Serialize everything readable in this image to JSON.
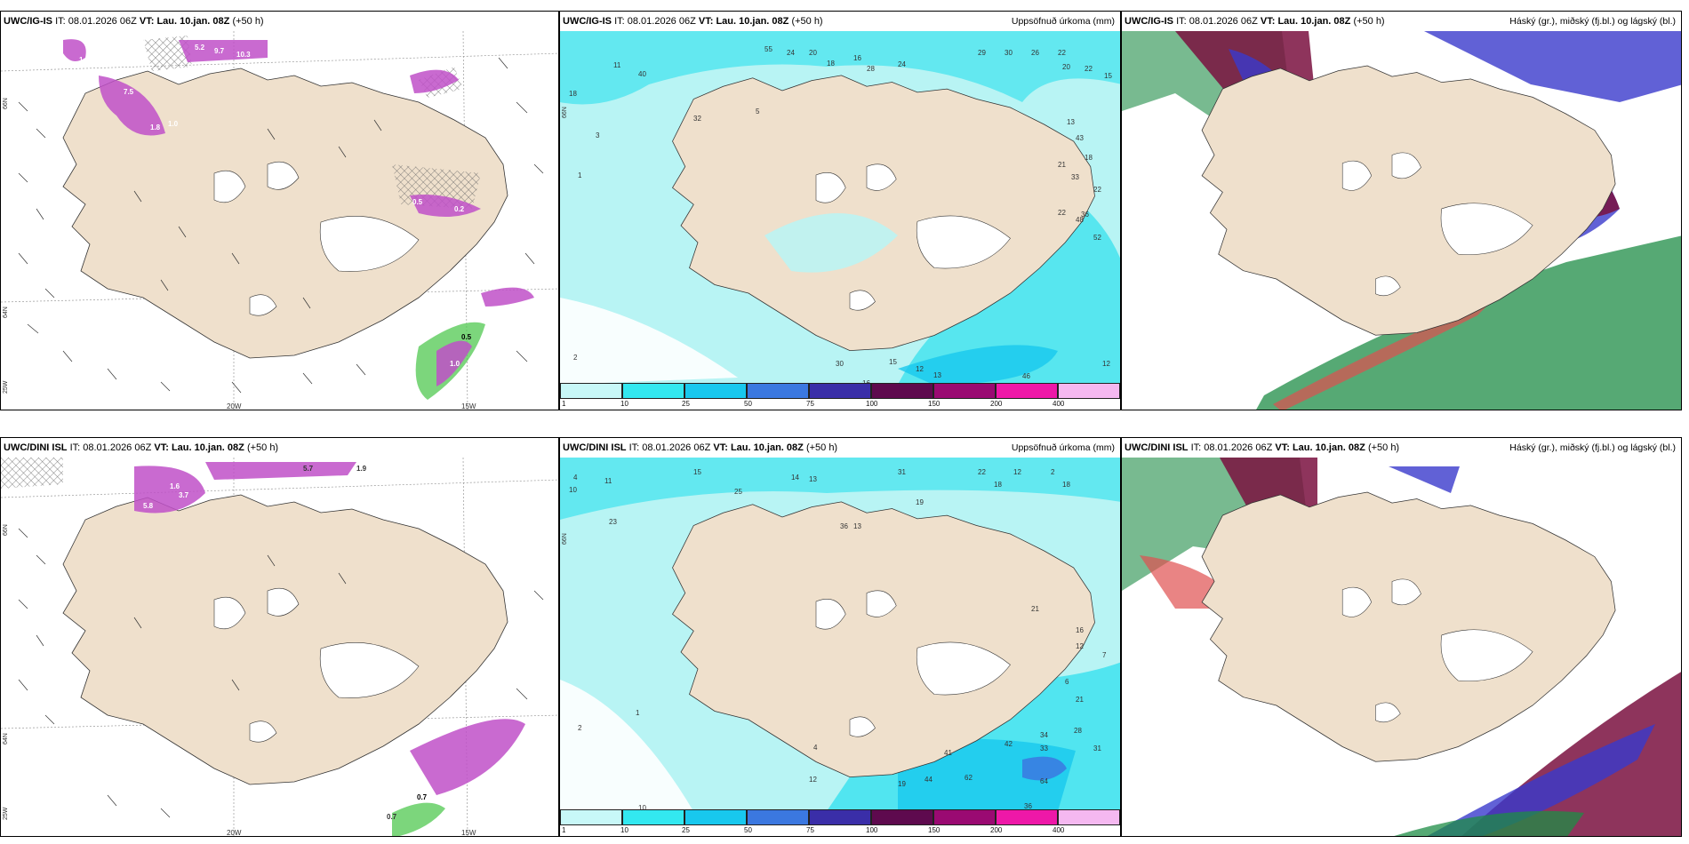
{
  "rows": [
    {
      "model": "UWC/IG-IS",
      "it_label": "IT:",
      "it_value": "08.01.2026 06Z",
      "vt_label": "VT:",
      "vt_value": "Lau. 10.jan. 08Z",
      "lead": "(+50 h)",
      "panel1": {
        "lon_labels": [
          "20W",
          "15W"
        ],
        "lat_labels": [
          "66N",
          "64N",
          "25W"
        ],
        "hatch_values": [
          "1.0",
          "5.2",
          "9.7",
          "10.3",
          "7.5",
          "1.8",
          "1.0",
          "0.5",
          "0.5",
          "0.2",
          "1.0"
        ]
      },
      "panel2": {
        "right_title": "Uppsöfnuð úrkoma (mm)",
        "lat_label": "66N",
        "point_values": [
          "18",
          "11",
          "55",
          "24",
          "20",
          "18",
          "16",
          "22",
          "29",
          "30",
          "26",
          "28",
          "24",
          "40",
          "32",
          "22",
          "20",
          "15",
          "13",
          "43",
          "21",
          "18",
          "33",
          "22",
          "36",
          "22",
          "48",
          "52",
          "16",
          "15",
          "13",
          "12",
          "46",
          "30",
          "12",
          "8",
          "2",
          "5",
          "3",
          "1"
        ]
      },
      "panel3": {
        "right_title": "Háský (gr.), miðský (fj.bl.) og lágský (bl.)"
      }
    },
    {
      "model": "UWC/DINI ISL",
      "it_label": "IT:",
      "it_value": "08.01.2026 06Z",
      "vt_label": "VT:",
      "vt_value": "Lau. 10.jan. 08Z",
      "lead": "(+50 h)",
      "panel1": {
        "lon_labels": [
          "20W",
          "15W"
        ],
        "lat_labels": [
          "66N",
          "64N",
          "25W"
        ],
        "hatch_values": [
          "5.7",
          "5.8",
          "1.6",
          "1.9",
          "3.7",
          "0.7",
          "2.0",
          "1.7",
          "0.7"
        ]
      },
      "panel2": {
        "right_title": "Uppsöfnuð úrkoma (mm)",
        "lat_label": "66N",
        "point_values": [
          "10",
          "4",
          "11",
          "15",
          "25",
          "14",
          "13",
          "31",
          "22",
          "18",
          "12",
          "2",
          "18",
          "36",
          "23",
          "13",
          "19",
          "16",
          "21",
          "41",
          "34",
          "42",
          "33",
          "31",
          "44",
          "62",
          "64",
          "36",
          "19",
          "12",
          "10",
          "4",
          "2",
          "1",
          "28",
          "21",
          "12",
          "7",
          "6"
        ]
      },
      "panel3": {
        "right_title": "Háský (gr.), miðský (fj.bl.) og lágský (bl.)"
      }
    }
  ],
  "colorbar": {
    "ticks": [
      "1",
      "10",
      "25",
      "50",
      "75",
      "100",
      "150",
      "200",
      "400"
    ],
    "colors": [
      "#c8f8f8",
      "#33e8f0",
      "#18c8ee",
      "#3b78e0",
      "#3a2ea8",
      "#5e0a4e",
      "#9a0a72",
      "#ee18a8",
      "#f5b8f0"
    ]
  },
  "colors": {
    "land": "#efe0cc",
    "precip_light": "#b8f4f4",
    "precip_mid": "#3ee2ee",
    "snow_hatch": "#7a7a7a",
    "shower_purple": "#c050c8",
    "shower_green": "#50c850",
    "cloud_high": "#1e8c46",
    "cloud_mid": "#7a1040",
    "cloud_low": "#3a3acc"
  }
}
